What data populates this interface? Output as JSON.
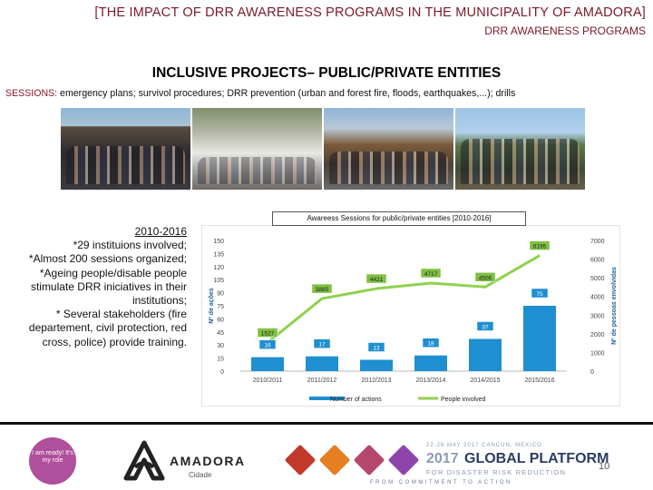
{
  "header": {
    "title": "[THE IMPACT OF DRR AWARENESS PROGRAMS IN THE MUNICIPALITY OF AMADORA]",
    "subtitle": "DRR AWARENESS PROGRAMS"
  },
  "slide_title": "INCLUSIVE PROJECTS– PUBLIC/PRIVATE ENTITIES",
  "sessions": {
    "label": "SESSIONS:",
    "text": " emergency plans; survivol procedures; DRR prevention (urban and forest fire, floods, earthquakes,...); drills"
  },
  "left_text": {
    "period": "2010-2016",
    "lines": [
      "*29 instituions involved;",
      "*Almost 200 sessions organized;",
      "*Ageing people/disable people stimulate DRR iniciatives in their institutions;",
      "* Several stakeholders (fire departement, civil protection, red cross, police) provide training."
    ]
  },
  "chart_data": {
    "type": "bar",
    "title": "Awareess Sessions for public/private entities [2010-2016]",
    "categories": [
      "2010/2011",
      "2011/2012",
      "2012/2013",
      "2013/2014",
      "2014/2015",
      "2015/2016"
    ],
    "series": [
      {
        "name": "Number of actions",
        "kind": "bar",
        "axis": "left",
        "values": [
          16,
          17,
          13,
          18,
          37,
          75
        ],
        "labels": [
          "16",
          "17",
          "13",
          "18",
          "37",
          "75"
        ],
        "color": "#1f8fd1"
      },
      {
        "name": "People involved",
        "kind": "line",
        "axis": "right",
        "values": [
          1527,
          3885,
          4421,
          4717,
          4506,
          6195
        ],
        "labels": [
          "1527",
          "3885",
          "4421",
          "4717",
          "4506",
          "6195"
        ],
        "color": "#8fd14f"
      }
    ],
    "ylabel": "Nº de ações",
    "y2label": "Nº de pessoas envolvidas",
    "ylim": [
      0,
      150
    ],
    "y_ticks": [
      "0",
      "15",
      "30",
      "45",
      "60",
      "75",
      "90",
      "105",
      "120",
      "135",
      "150"
    ],
    "y2lim": [
      0,
      7000
    ],
    "y2_ticks": [
      "0",
      "1000",
      "2000",
      "3000",
      "4000",
      "5000",
      "6000",
      "7000"
    ],
    "legend": "bottom",
    "grid": false
  },
  "footer": {
    "badge_text": "I am ready! It's my role",
    "amadora_name": "AMADORA",
    "amadora_sub": "Cidade",
    "gp_small": "22-26 MAY 2017 CANCUN, MEXICO",
    "gp_year": "2017",
    "gp_name": "GLOBAL PLATFORM",
    "gp_sub": "FOR DISASTER RISK REDUCTION",
    "gp_tag": "FROM COMMITMENT TO ACTION",
    "tile_colors": [
      "#c0392b",
      "#e67e22",
      "#b5476b",
      "#8e44ad"
    ],
    "page_number": "10"
  }
}
